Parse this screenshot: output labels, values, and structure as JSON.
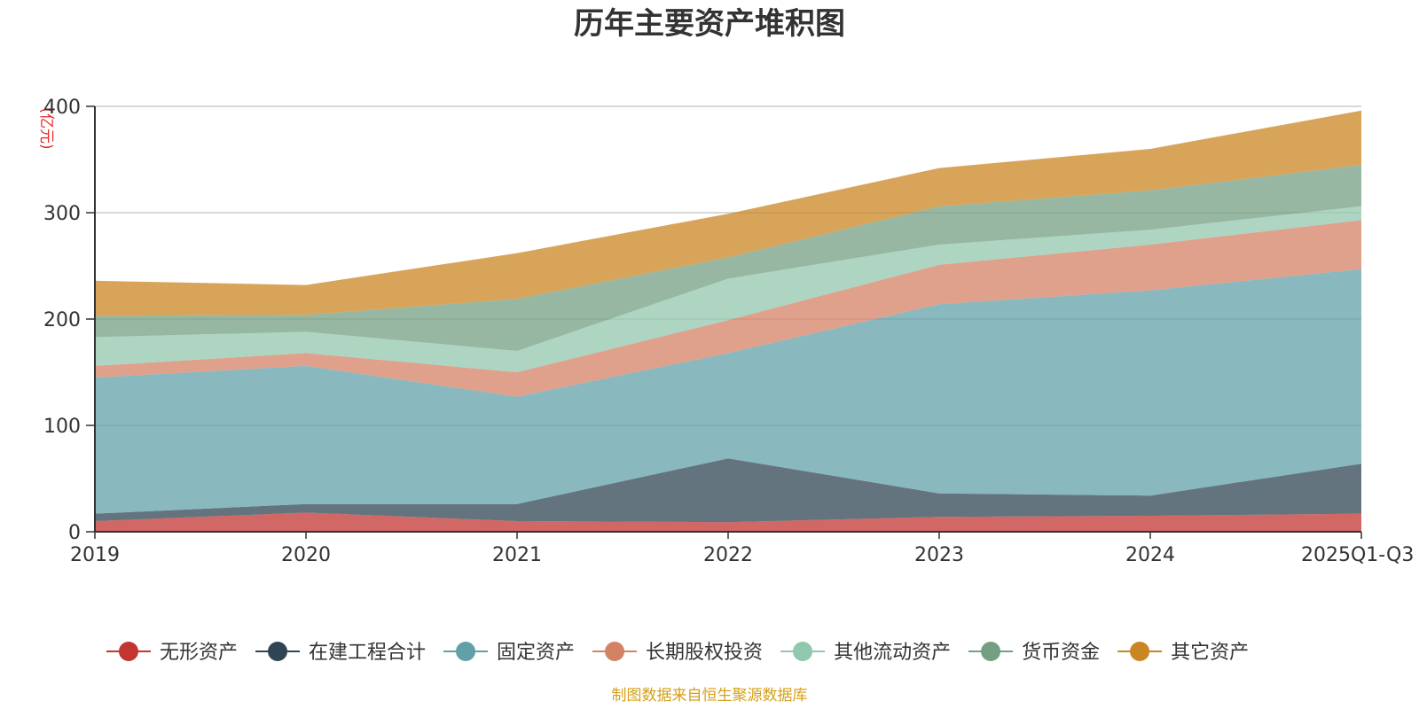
{
  "chart_data": {
    "type": "area",
    "stacked": true,
    "title": "历年主要资产堆积图",
    "unit_label": "(亿元)",
    "categories": [
      "2019",
      "2020",
      "2021",
      "2022",
      "2023",
      "2024",
      "2025Q1-Q3"
    ],
    "ylim": [
      0,
      400
    ],
    "yticks": [
      "0",
      "100",
      "200",
      "300",
      "400"
    ],
    "grid": true,
    "legend_position": "bottom",
    "series": [
      {
        "name": "无形资产",
        "color": "#c23531",
        "values": [
          10,
          18,
          10,
          9,
          14,
          15,
          17
        ]
      },
      {
        "name": "在建工程合计",
        "color": "#2f4554",
        "values": [
          7,
          8,
          16,
          60,
          22,
          19,
          47
        ]
      },
      {
        "name": "固定资产",
        "color": "#61a0a8",
        "values": [
          128,
          130,
          101,
          99,
          178,
          193,
          183
        ]
      },
      {
        "name": "长期股权投资",
        "color": "#d48265",
        "values": [
          11,
          12,
          23,
          31,
          37,
          43,
          46
        ]
      },
      {
        "name": "其他流动资产",
        "color": "#91c7ae",
        "values": [
          27,
          20,
          20,
          39,
          19,
          14,
          13
        ]
      },
      {
        "name": "货币资金",
        "color": "#749f83",
        "values": [
          20,
          16,
          49,
          20,
          36,
          37,
          39
        ]
      },
      {
        "name": "其它资产",
        "color": "#ca8622",
        "values": [
          33,
          28,
          43,
          41,
          36,
          39,
          51
        ]
      }
    ]
  },
  "source_text": "制图数据来自恒生聚源数据库",
  "source_color": "#d4a017"
}
